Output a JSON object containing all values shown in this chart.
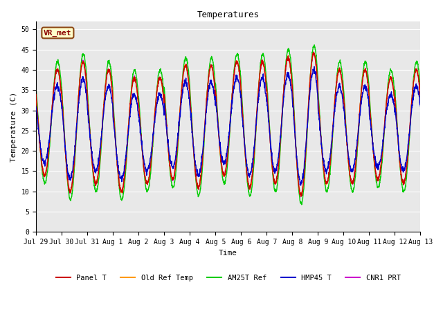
{
  "title": "Temperatures",
  "ylabel": "Temperature (C)",
  "xlabel": "Time",
  "ylim": [
    0,
    52
  ],
  "yticks": [
    0,
    5,
    10,
    15,
    20,
    25,
    30,
    35,
    40,
    45,
    50
  ],
  "annotation_text": "VR_met",
  "figure_bg_color": "#ffffff",
  "plot_bg_color": "#e8e8e8",
  "series": [
    {
      "label": "Panel T",
      "color": "#cc0000",
      "zorder": 4,
      "lw": 1.0
    },
    {
      "label": "Old Ref Temp",
      "color": "#ff9900",
      "zorder": 3,
      "lw": 1.0
    },
    {
      "label": "AM25T Ref",
      "color": "#00cc00",
      "zorder": 2,
      "lw": 1.0
    },
    {
      "label": "HMP45 T",
      "color": "#0000cc",
      "zorder": 5,
      "lw": 1.0
    },
    {
      "label": "CNR1 PRT",
      "color": "#cc00cc",
      "zorder": 1,
      "lw": 1.0
    }
  ],
  "x_tick_labels": [
    "Jul 29",
    "Jul 30",
    "Jul 31",
    "Aug 1",
    "Aug 2",
    "Aug 3",
    "Aug 4",
    "Aug 5",
    "Aug 6",
    "Aug 7",
    "Aug 8",
    "Aug 9",
    "Aug 10",
    "Aug 11",
    "Aug 12",
    "Aug 13"
  ],
  "num_days": 15,
  "samples_per_day": 144,
  "font_family": "DejaVu Sans Mono",
  "title_fontsize": 9,
  "tick_fontsize": 7,
  "label_fontsize": 8,
  "legend_fontsize": 7.5
}
